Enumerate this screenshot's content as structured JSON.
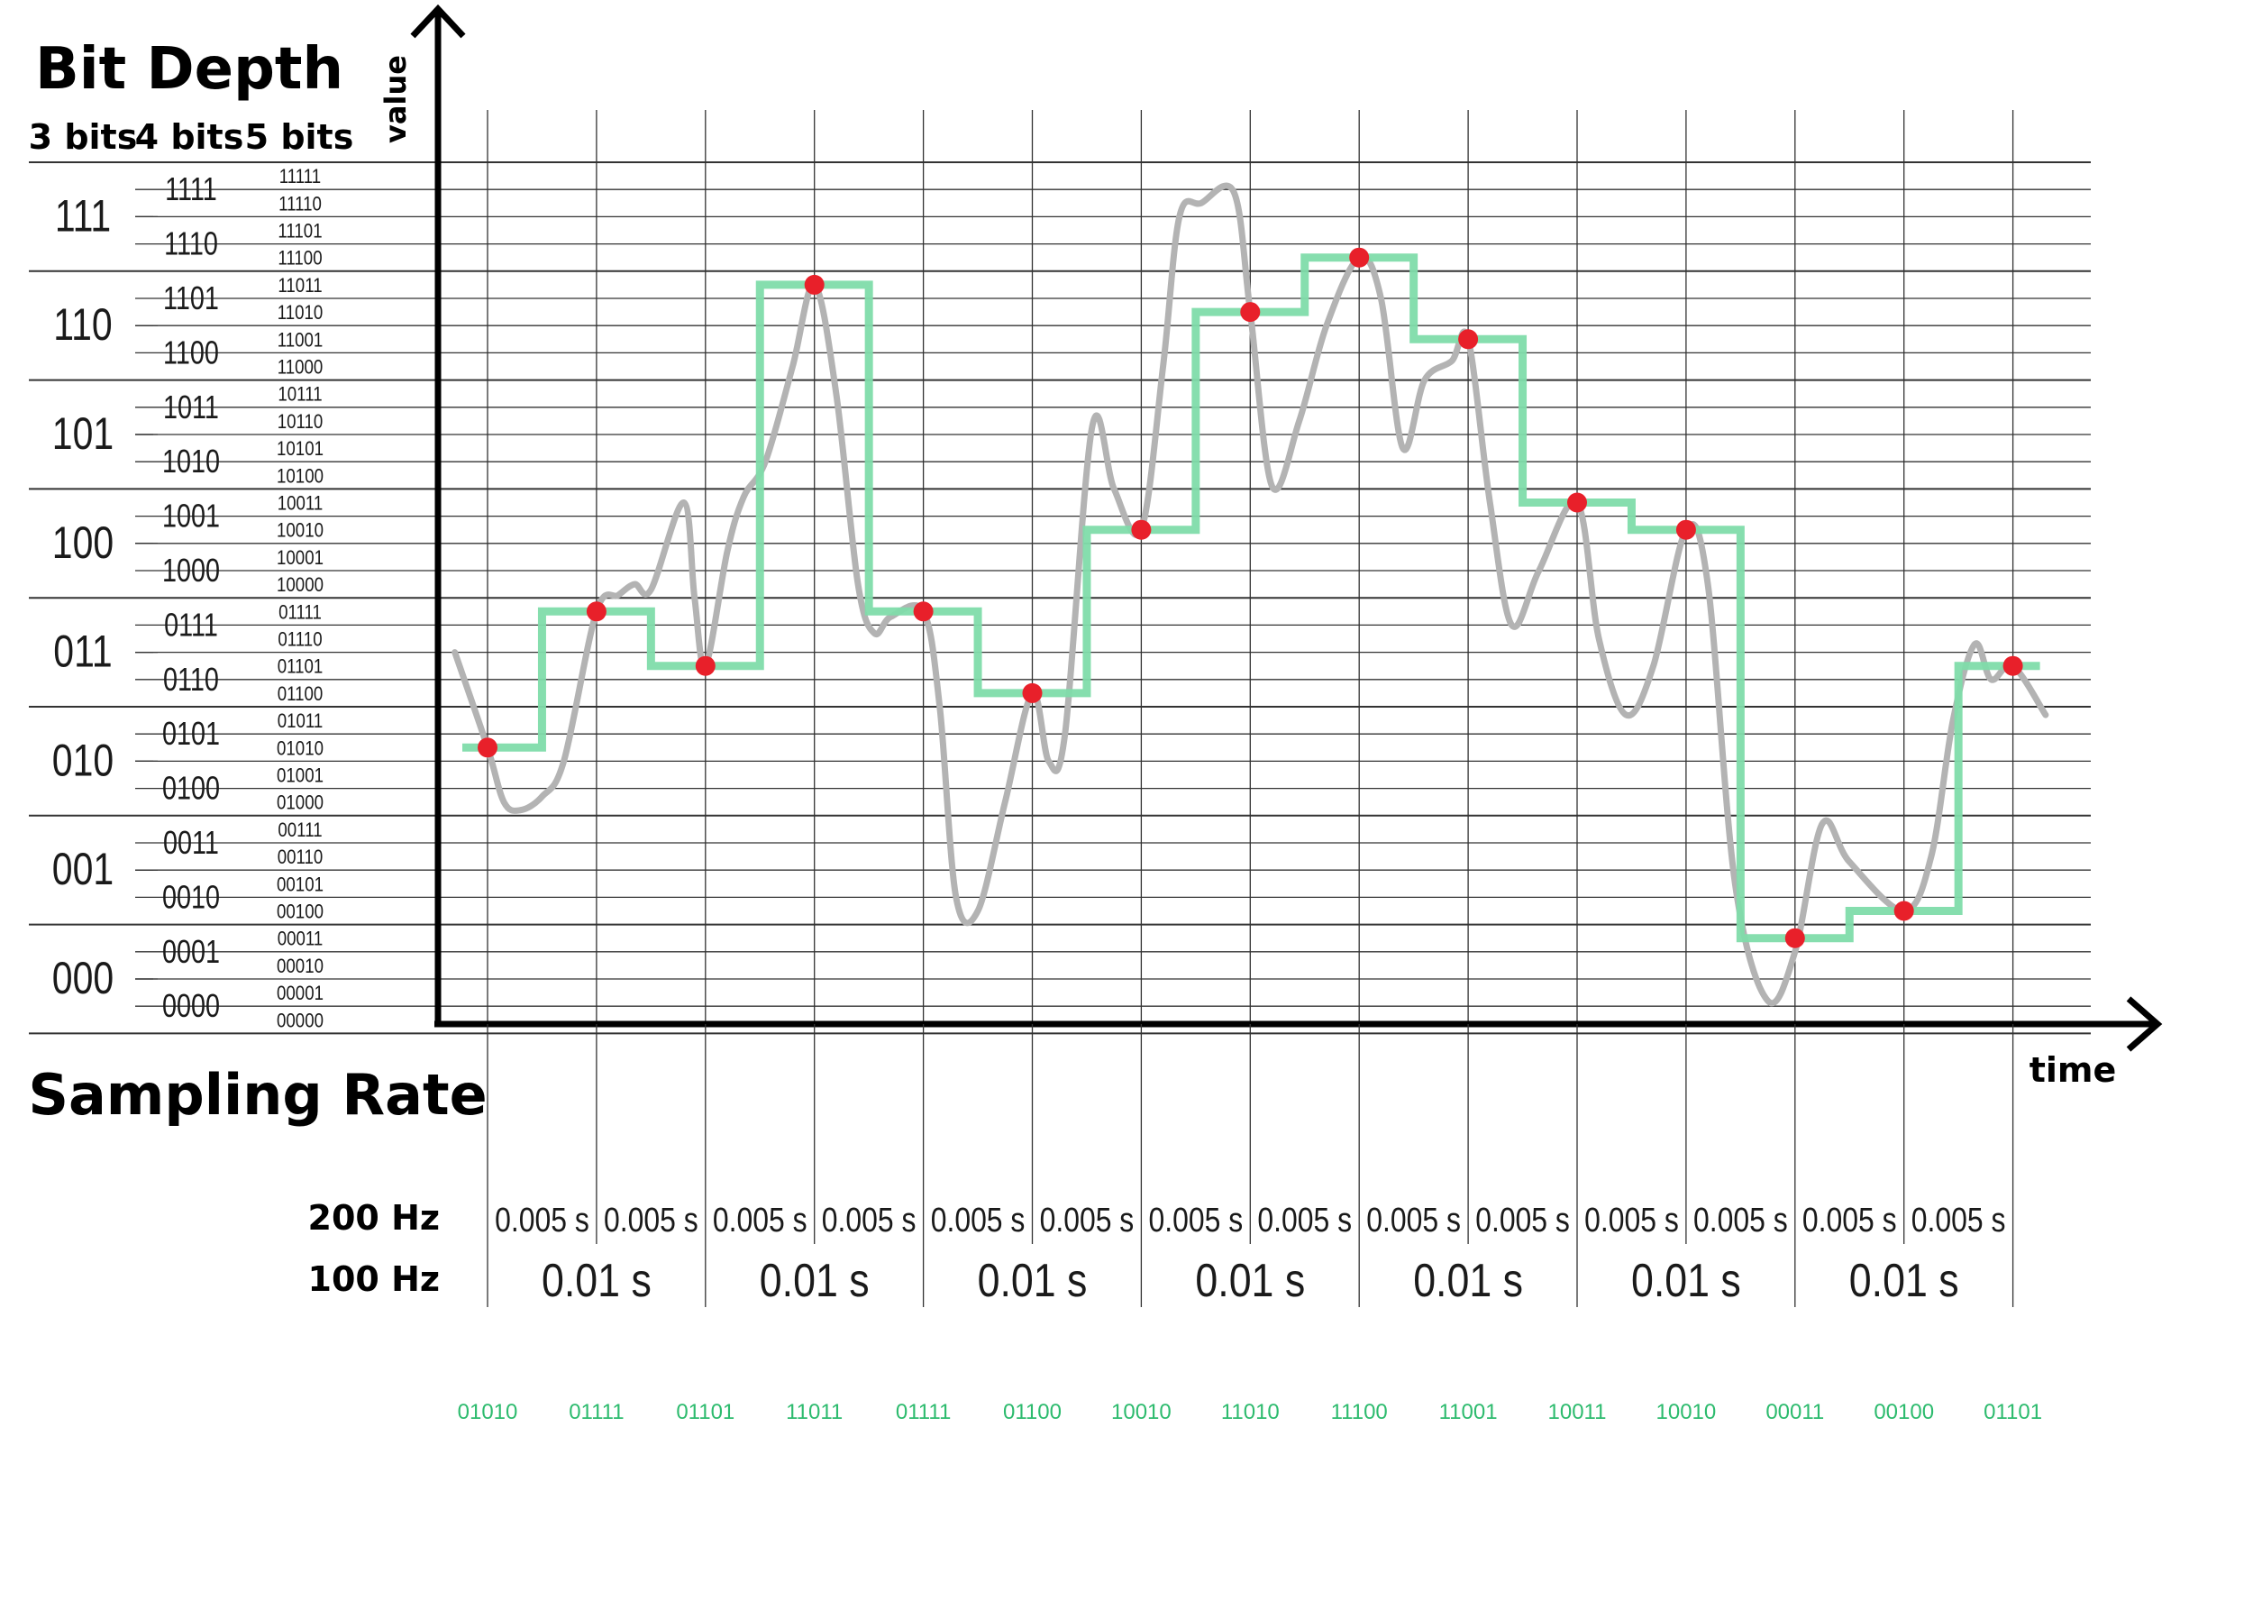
{
  "bit_depth": {
    "title": "Bit Depth",
    "column_headers": [
      "3 bits",
      "4 bits",
      "5 bits"
    ],
    "codes_3bit": [
      "111",
      "110",
      "101",
      "100",
      "011",
      "010",
      "001",
      "000"
    ],
    "codes_4bit": [
      "1111",
      "1110",
      "1101",
      "1100",
      "1011",
      "1010",
      "1001",
      "1000",
      "0111",
      "0110",
      "0101",
      "0100",
      "0011",
      "0010",
      "0001",
      "0000"
    ],
    "codes_5bit": [
      "11111",
      "11110",
      "11101",
      "11100",
      "11011",
      "11010",
      "11001",
      "11000",
      "10111",
      "10110",
      "10101",
      "10100",
      "10011",
      "10010",
      "10001",
      "10000",
      "01111",
      "01110",
      "01101",
      "01100",
      "01011",
      "01010",
      "01001",
      "01000",
      "00111",
      "00110",
      "00101",
      "00100",
      "00011",
      "00010",
      "00001",
      "00000"
    ]
  },
  "axes": {
    "y_label": "value",
    "x_label": "time"
  },
  "sampling": {
    "title": "Sampling Rate",
    "rows": [
      {
        "label": "200 Hz",
        "interval": "0.005 s",
        "count": 14
      },
      {
        "label": "100 Hz",
        "interval": "0.01 s",
        "count": 7
      }
    ]
  },
  "samples": {
    "level_5bit": [
      10,
      15,
      13,
      27,
      15,
      12,
      18,
      26,
      28,
      25,
      19,
      18,
      3,
      4,
      13
    ],
    "codes": [
      "01010",
      "01111",
      "01101",
      "11011",
      "01111",
      "01100",
      "10010",
      "11010",
      "11100",
      "11001",
      "10011",
      "10010",
      "00011",
      "00100",
      "01101"
    ]
  },
  "colors": {
    "analog_signal": "#b3b3b3",
    "quantized_signal": "#7fdcaa",
    "sample_point": "#e8202a",
    "code_text": "#2dbb6e",
    "grid": "#333333"
  }
}
